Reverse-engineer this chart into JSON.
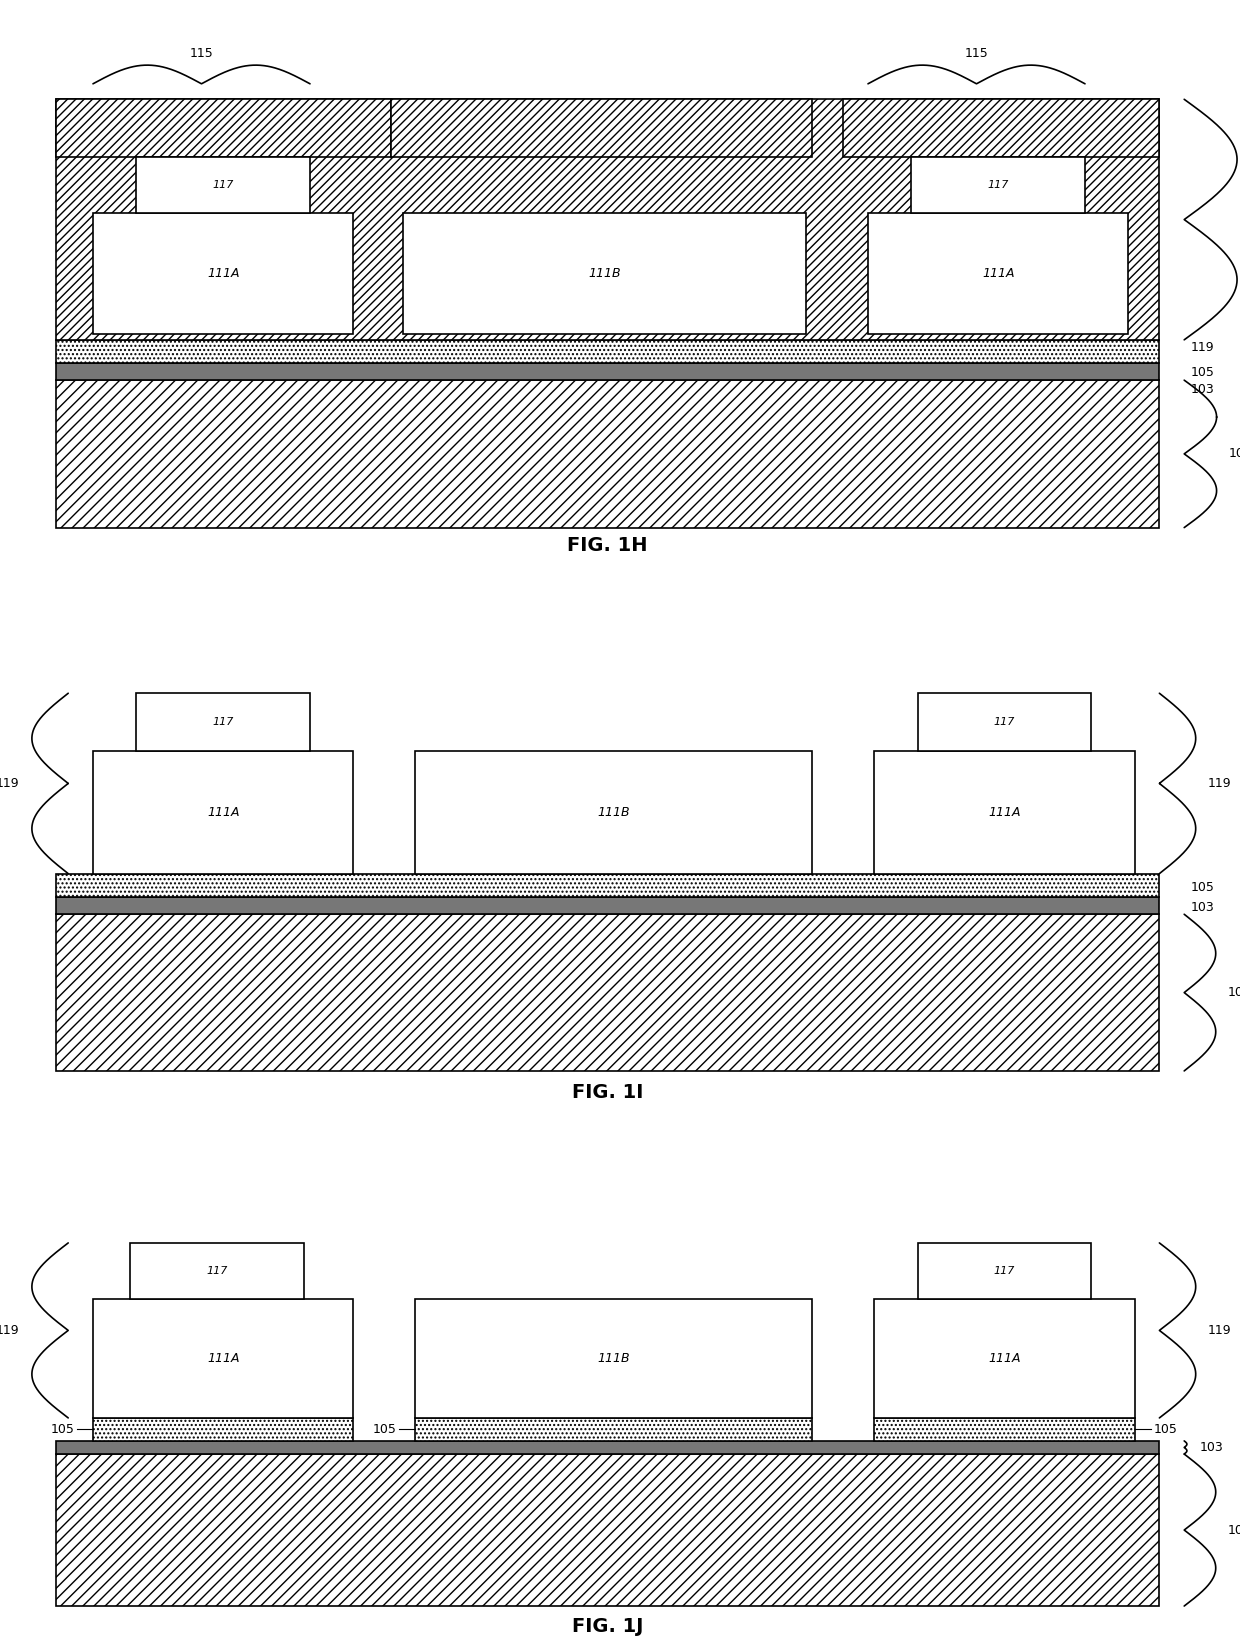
{
  "bg_color": "#ffffff",
  "line_color": "#000000",
  "dark_fill": "#777777",
  "fig1h_label": "FIG. 1H",
  "fig1i_label": "FIG. 1I",
  "fig1j_label": "FIG. 1J",
  "label_fontsize": 9,
  "figlabel_fontsize": 14,
  "lw": 1.2
}
